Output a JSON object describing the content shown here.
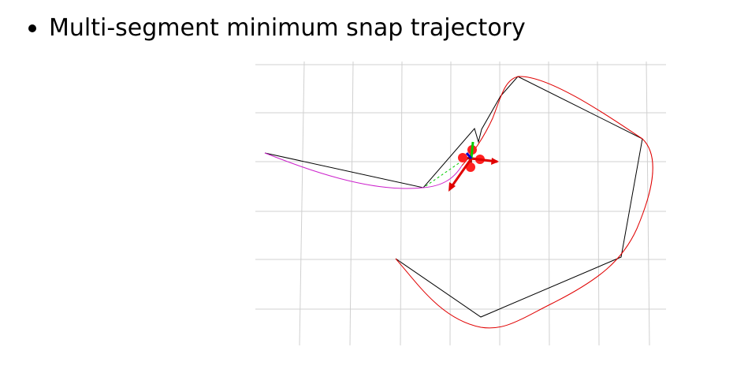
{
  "slide": {
    "bullet_text": "Multi-segment minimum snap trajectory"
  },
  "viz": {
    "colors": {
      "grid": "#d0d0d0",
      "waypoint_path": "#000000",
      "trajectory": "#e00000",
      "executed_trajectory": "#cc22cc",
      "drone_rotor": "#ff2020",
      "axis_x": "#e00000",
      "axis_y": "#00cc00",
      "axis_z": "#0000cc",
      "reference_dash": "#00cc00"
    }
  }
}
